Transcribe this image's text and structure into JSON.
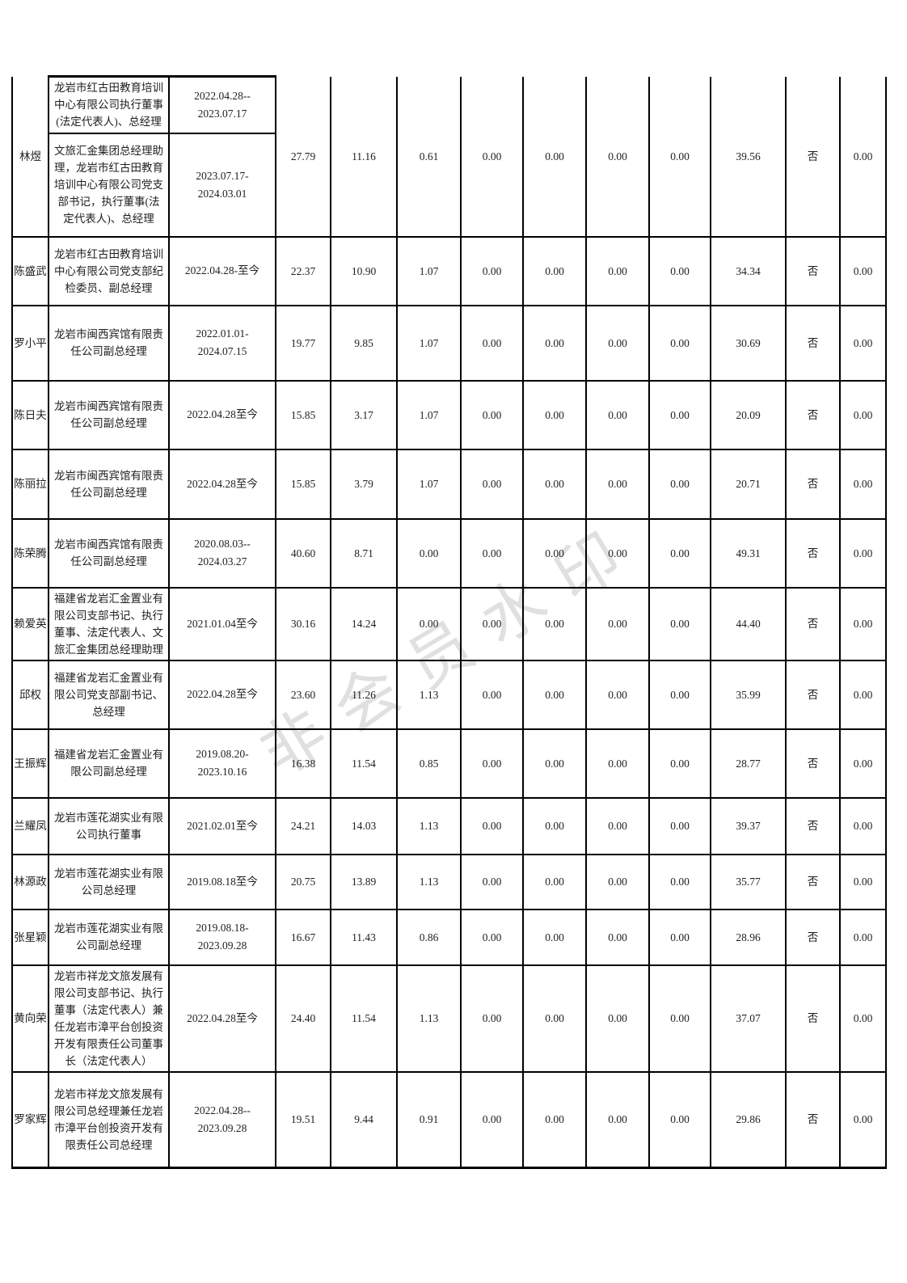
{
  "watermark": {
    "text": "非会员水印",
    "color": "#e0e0e0"
  },
  "table": {
    "row_groups": [
      {
        "name": "林煜",
        "terms": [
          {
            "position": "龙岩市红古田教育培训中心有限公司执行董事(法定代表人)、总经理",
            "period": "2022.04.28--\n2023.07.17"
          },
          {
            "position": "文旅汇金集团总经理助理，龙岩市红古田教育培训中心有限公司党支部书记，执行董事(法定代表人)、总经理",
            "period": "2023.07.17-\n2024.03.01"
          }
        ],
        "values": [
          "27.79",
          "11.16",
          "0.61",
          "0.00",
          "0.00",
          "0.00",
          "0.00",
          "39.56",
          "否",
          "0.00"
        ]
      },
      {
        "name": "陈盛武",
        "terms": [
          {
            "position": "龙岩市红古田教育培训中心有限公司党支部纪检委员、副总经理",
            "period": "2022.04.28-至今"
          }
        ],
        "values": [
          "22.37",
          "10.90",
          "1.07",
          "0.00",
          "0.00",
          "0.00",
          "0.00",
          "34.34",
          "否",
          "0.00"
        ]
      },
      {
        "name": "罗小平",
        "terms": [
          {
            "position": "龙岩市闽西宾馆有限责任公司副总经理",
            "period": "2022.01.01-\n2024.07.15"
          }
        ],
        "values": [
          "19.77",
          "9.85",
          "1.07",
          "0.00",
          "0.00",
          "0.00",
          "0.00",
          "30.69",
          "否",
          "0.00"
        ]
      },
      {
        "name": "陈日夫",
        "terms": [
          {
            "position": "龙岩市闽西宾馆有限责任公司副总经理",
            "period": "2022.04.28至今"
          }
        ],
        "values": [
          "15.85",
          "3.17",
          "1.07",
          "0.00",
          "0.00",
          "0.00",
          "0.00",
          "20.09",
          "否",
          "0.00"
        ]
      },
      {
        "name": "陈丽拉",
        "terms": [
          {
            "position": "龙岩市闽西宾馆有限责任公司副总经理",
            "period": "2022.04.28至今"
          }
        ],
        "values": [
          "15.85",
          "3.79",
          "1.07",
          "0.00",
          "0.00",
          "0.00",
          "0.00",
          "20.71",
          "否",
          "0.00"
        ]
      },
      {
        "name": "陈荣腾",
        "terms": [
          {
            "position": "龙岩市闽西宾馆有限责任公司副总经理",
            "period": "2020.08.03--\n2024.03.27"
          }
        ],
        "values": [
          "40.60",
          "8.71",
          "0.00",
          "0.00",
          "0.00",
          "0.00",
          "0.00",
          "49.31",
          "否",
          "0.00"
        ]
      },
      {
        "name": "赖爱英",
        "terms": [
          {
            "position": "福建省龙岩汇金置业有限公司支部书记、执行董事、法定代表人、文旅汇金集团总经理助理",
            "period": "2021.01.04至今"
          }
        ],
        "values": [
          "30.16",
          "14.24",
          "0.00",
          "0.00",
          "0.00",
          "0.00",
          "0.00",
          "44.40",
          "否",
          "0.00"
        ]
      },
      {
        "name": "邱权",
        "terms": [
          {
            "position": "福建省龙岩汇金置业有限公司党支部副书记、总经理",
            "period": "2022.04.28至今"
          }
        ],
        "values": [
          "23.60",
          "11.26",
          "1.13",
          "0.00",
          "0.00",
          "0.00",
          "0.00",
          "35.99",
          "否",
          "0.00"
        ]
      },
      {
        "name": "王振辉",
        "terms": [
          {
            "position": "福建省龙岩汇金置业有限公司副总经理",
            "period": "2019.08.20-\n2023.10.16"
          }
        ],
        "values": [
          "16.38",
          "11.54",
          "0.85",
          "0.00",
          "0.00",
          "0.00",
          "0.00",
          "28.77",
          "否",
          "0.00"
        ]
      },
      {
        "name": "兰耀凤",
        "terms": [
          {
            "position": "龙岩市莲花湖实业有限公司执行董事",
            "period": "2021.02.01至今"
          }
        ],
        "values": [
          "24.21",
          "14.03",
          "1.13",
          "0.00",
          "0.00",
          "0.00",
          "0.00",
          "39.37",
          "否",
          "0.00"
        ]
      },
      {
        "name": "林源政",
        "terms": [
          {
            "position": "龙岩市莲花湖实业有限公司总经理",
            "period": "2019.08.18至今"
          }
        ],
        "values": [
          "20.75",
          "13.89",
          "1.13",
          "0.00",
          "0.00",
          "0.00",
          "0.00",
          "35.77",
          "否",
          "0.00"
        ]
      },
      {
        "name": "张星颖",
        "terms": [
          {
            "position": "龙岩市莲花湖实业有限公司副总经理",
            "period": "2019.08.18-\n2023.09.28"
          }
        ],
        "values": [
          "16.67",
          "11.43",
          "0.86",
          "0.00",
          "0.00",
          "0.00",
          "0.00",
          "28.96",
          "否",
          "0.00"
        ]
      },
      {
        "name": "黄向荣",
        "terms": [
          {
            "position": "龙岩市祥龙文旅发展有限公司支部书记、执行董事（法定代表人）兼任龙岩市漳平台创投资开发有限责任公司董事长（法定代表人）",
            "period": "2022.04.28至今"
          }
        ],
        "values": [
          "24.40",
          "11.54",
          "1.13",
          "0.00",
          "0.00",
          "0.00",
          "0.00",
          "37.07",
          "否",
          "0.00"
        ]
      },
      {
        "name": "罗家辉",
        "terms": [
          {
            "position": "龙岩市祥龙文旅发展有限公司总经理兼任龙岩市漳平台创投资开发有限责任公司总经理",
            "period": "2022.04.28--\n2023.09.28"
          }
        ],
        "values": [
          "19.51",
          "9.44",
          "0.91",
          "0.00",
          "0.00",
          "0.00",
          "0.00",
          "29.86",
          "否",
          "0.00"
        ]
      }
    ]
  }
}
